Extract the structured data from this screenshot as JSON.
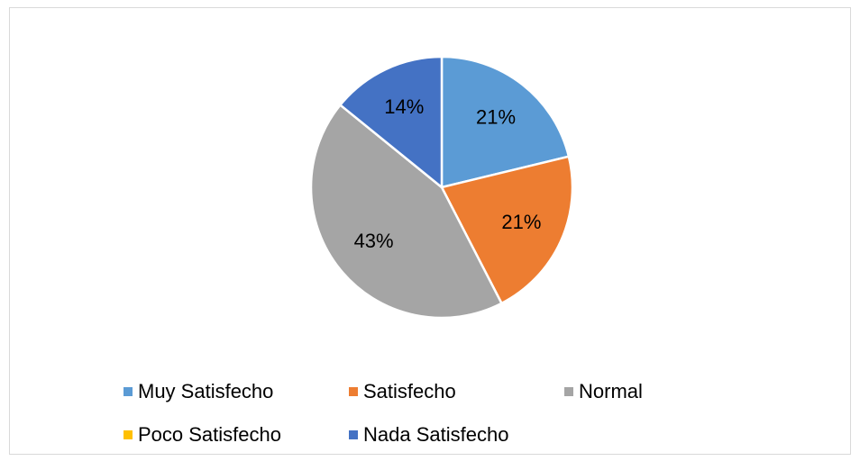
{
  "chart_data": {
    "type": "pie",
    "categories": [
      "Muy Satisfecho",
      "Satisfecho",
      "Normal",
      "Poco Satisfecho",
      "Nada Satisfecho"
    ],
    "values": [
      21,
      21,
      43,
      0,
      14
    ],
    "value_labels": [
      "21%",
      "21%",
      "43%",
      null,
      "14%"
    ],
    "colors": [
      "#5b9bd5",
      "#ed7d31",
      "#a5a5a5",
      "#ffc000",
      "#4472c4"
    ],
    "legend": "bottom"
  }
}
